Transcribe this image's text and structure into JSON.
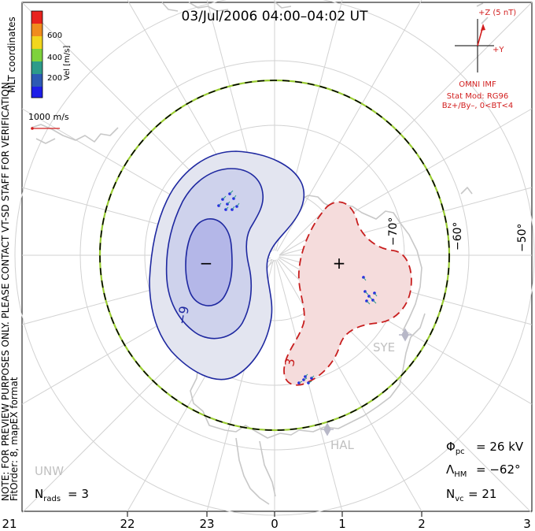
{
  "title": "03/Jul/2006 04:00–04:02 UT",
  "coordinates_label": "MLT coordinates",
  "velocity_scale": {
    "label": "Vel [m/s]",
    "ticks": [
      "600",
      "400",
      "200"
    ],
    "colors": [
      "#e8231e",
      "#f08c1e",
      "#f2d61e",
      "#7ed23c",
      "#2d9b8a",
      "#2d5ab4",
      "#1e1ee8"
    ]
  },
  "reference_vector": {
    "label": "1000 m/s",
    "color": "#d21e1e"
  },
  "preview_note": "NOTE: FOR PREVIEW PURPOSES ONLY. PLEASE CONTACT VT-SD STAFF FOR VERIFICATION.",
  "fit_note": "FitOrder: 8, mapEX format",
  "imf": {
    "z_label": "+Z (5 nT)",
    "y_label": "+Y",
    "source": "OMNI IMF",
    "model": "Stat Mod: RG96",
    "condition": "Bz+/By–, 0<BT<4",
    "color": "#d21e1e"
  },
  "latitude_labels": [
    "−70°",
    "−60°",
    "−50°"
  ],
  "station_labels": [
    "SYE",
    "HAL",
    "UNW"
  ],
  "contour_labels": {
    "negative_sign": "−",
    "positive_sign": "+",
    "negative_value": "−9",
    "positive_value": "3"
  },
  "stats": {
    "phi_symbol": "Φ",
    "phi_sub": "pc",
    "phi_value": "= 26 kV",
    "lambda_symbol": "Λ",
    "lambda_sub": "HM",
    "lambda_value": "= −62°",
    "nvc_symbol": "N",
    "nvc_sub": "vc",
    "nvc_value": "= 21",
    "nrads_symbol": "N",
    "nrads_sub": "rads",
    "nrads_value": "= 3"
  },
  "mlt_axis": [
    "21",
    "22",
    "23",
    "0",
    "1",
    "2",
    "3"
  ],
  "colors": {
    "negative_contour": "#1e28a0",
    "negative_fill_outer": "#e3e5f0",
    "negative_fill_mid": "#ced2ec",
    "negative_fill_inner": "#b4b7e8",
    "positive_contour": "#c81e1e",
    "positive_fill": "#f5dcdc",
    "coastline": "#c8c8c8",
    "grid": "#d2d2d2",
    "boundary_dash_green": "#9acd32"
  }
}
